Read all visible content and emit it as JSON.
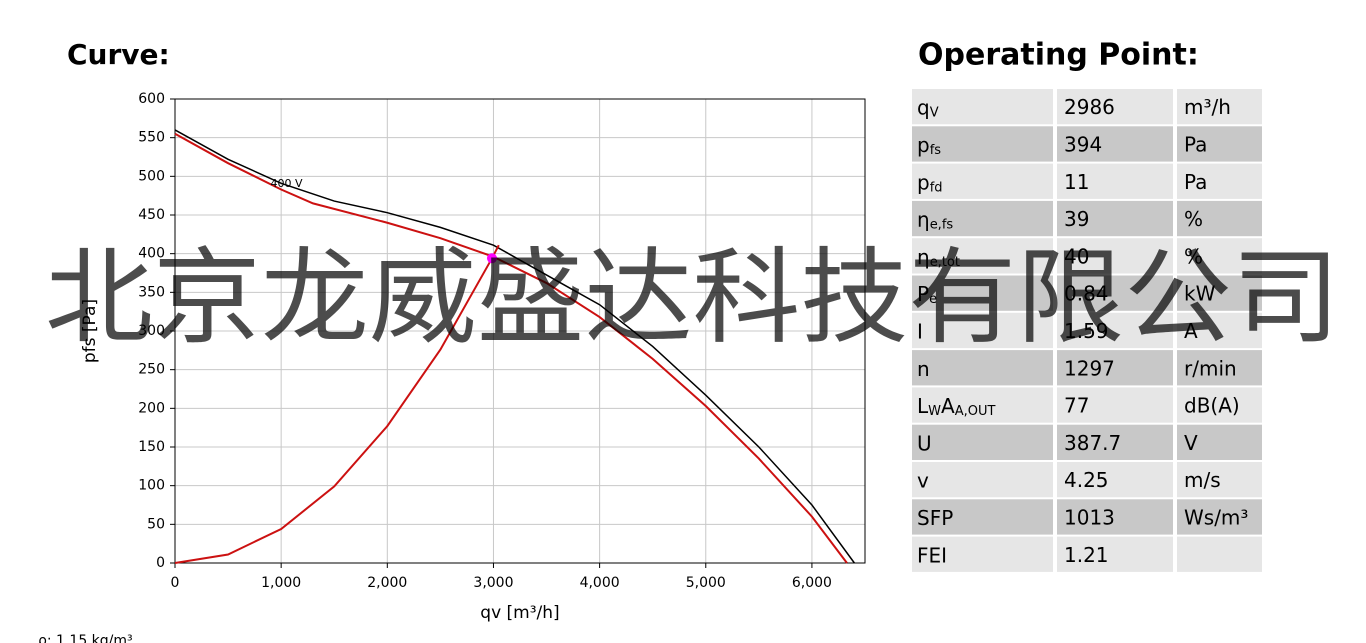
{
  "chart_data": {
    "type": "line",
    "title": "Curve:",
    "xlabel": "qv [m³/h]",
    "ylabel": "pfs [Pa]",
    "xlim": [
      0,
      6500
    ],
    "ylim": [
      0,
      600
    ],
    "xticks": [
      0,
      {
        "value": 1000,
        "label": "1,000"
      },
      {
        "value": 2000,
        "label": "2,000"
      },
      {
        "value": 3000,
        "label": "3,000"
      },
      {
        "value": 4000,
        "label": "4,000"
      },
      {
        "value": 5000,
        "label": "5,000"
      },
      {
        "value": 6000,
        "label": "6,000"
      }
    ],
    "yticks": [
      0,
      50,
      100,
      150,
      200,
      250,
      300,
      350,
      400,
      450,
      500,
      550,
      600
    ],
    "grid": true,
    "series": [
      {
        "color": "#000000",
        "x": [
          0,
          500,
          1000,
          1500,
          2000,
          2500,
          3000,
          3700,
          4000,
          4500,
          5000,
          5500,
          6000,
          6400
        ],
        "values": [
          560,
          522,
          491,
          468,
          453,
          434,
          411,
          357,
          334,
          280,
          217,
          150,
          75,
          0
        ]
      },
      {
        "color": "#cc1111",
        "x": [
          0,
          500,
          1000,
          1300,
          2000,
          2500,
          3000,
          3500,
          4000,
          4500,
          5000,
          5500,
          6000,
          6330
        ],
        "values": [
          555,
          517,
          483,
          465,
          440,
          420,
          396,
          362,
          318,
          264,
          203,
          135,
          60,
          0
        ]
      },
      {
        "color": "#cc1111",
        "x": [
          0,
          500,
          1000,
          1500,
          2000,
          2500,
          2986,
          3050
        ],
        "values": [
          0,
          11,
          44,
          99,
          177,
          276,
          394,
          411
        ]
      }
    ],
    "operating_point": {
      "x": 2986,
      "y": 394,
      "color": "#ff00ff"
    },
    "annotations": [
      "400 V"
    ],
    "footnote": "ρ: 1.15 kg/m³"
  },
  "watermark": "北京龙威盛达科技有限公司",
  "table": {
    "title": "Operating Point:",
    "rows": [
      {
        "label": [
          {
            "t": "q"
          },
          {
            "t": "V",
            "sub": true
          }
        ],
        "value": 2986,
        "unit": "m³/h"
      },
      {
        "label": [
          {
            "t": "p"
          },
          {
            "t": "fs",
            "sub": true
          }
        ],
        "value": 394,
        "unit": "Pa"
      },
      {
        "label": [
          {
            "t": "p"
          },
          {
            "t": "fd",
            "sub": true
          }
        ],
        "value": 11,
        "unit": "Pa"
      },
      {
        "label": [
          {
            "t": "η"
          },
          {
            "t": "e,fs",
            "sub": true
          }
        ],
        "value": 39,
        "unit": "%"
      },
      {
        "label": [
          {
            "t": "η"
          },
          {
            "t": "e,tot",
            "sub": true
          }
        ],
        "value": 40,
        "unit": "%"
      },
      {
        "label": [
          {
            "t": "P"
          },
          {
            "t": "e",
            "sub": true
          }
        ],
        "value": 0.84,
        "unit": "kW"
      },
      {
        "label": [
          {
            "t": "I"
          }
        ],
        "value": 1.59,
        "unit": "A"
      },
      {
        "label": [
          {
            "t": "n"
          }
        ],
        "value": 1297,
        "unit": "r/min"
      },
      {
        "label": [
          {
            "t": "L"
          },
          {
            "t": "W",
            "sub": true
          },
          {
            "t": "A"
          },
          {
            "t": "A,OUT",
            "sub": true
          }
        ],
        "value": 77,
        "unit": "dB(A)"
      },
      {
        "label": [
          {
            "t": "U"
          }
        ],
        "value": 387.7,
        "unit": "V"
      },
      {
        "label": [
          {
            "t": "v"
          }
        ],
        "value": 4.25,
        "unit": "m/s"
      },
      {
        "label": [
          {
            "t": "SFP"
          }
        ],
        "value": 1013,
        "unit": "Ws/m³"
      },
      {
        "label": [
          {
            "t": "FEI"
          }
        ],
        "value": 1.21
      }
    ]
  }
}
